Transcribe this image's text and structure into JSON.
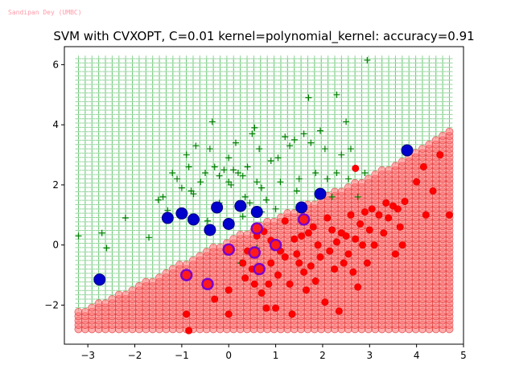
{
  "watermark": "Sandipan Dey (UMBC)",
  "chart_data": {
    "type": "scatter",
    "title": "SVM with CVXOPT, C=0.01 kernel=polynomial_kernel: accuracy=0.91",
    "xlabel": "",
    "ylabel": "",
    "xlim": [
      -3.5,
      5.0
    ],
    "ylim": [
      -3.3,
      6.6
    ],
    "xticks": [
      -3,
      -2,
      -1,
      0,
      1,
      2,
      3,
      4,
      5
    ],
    "yticks": [
      -2,
      0,
      2,
      4,
      6
    ],
    "grid": false,
    "legend": "none",
    "decision_region": {
      "grid_x_range": [
        -3.2,
        4.7
      ],
      "grid_y_range": [
        -2.8,
        6.2
      ],
      "boundary": [
        [
          -3.2,
          -2.2
        ],
        [
          -2.0,
          -1.4
        ],
        [
          -1.0,
          -0.6
        ],
        [
          0.0,
          0.2
        ],
        [
          1.0,
          0.9
        ],
        [
          2.0,
          1.6
        ],
        [
          3.0,
          2.3
        ],
        [
          4.0,
          3.1
        ],
        [
          4.7,
          3.9
        ]
      ],
      "positive_region_color": "#3cb44b",
      "negative_region_color": "#ff6b6b"
    },
    "series": [
      {
        "color": "#008000",
        "marker": "plus",
        "points": [
          [
            -3.2,
            0.3
          ],
          [
            -2.7,
            0.4
          ],
          [
            -2.6,
            -0.1
          ],
          [
            -2.2,
            0.9
          ],
          [
            -1.7,
            0.25
          ],
          [
            -1.5,
            1.5
          ],
          [
            -1.4,
            1.6
          ],
          [
            -1.2,
            2.4
          ],
          [
            -1.1,
            2.2
          ],
          [
            -1.0,
            1.9
          ],
          [
            -0.9,
            3.0
          ],
          [
            -0.85,
            2.6
          ],
          [
            -0.8,
            1.8
          ],
          [
            -0.75,
            1.7
          ],
          [
            -0.7,
            3.3
          ],
          [
            -0.6,
            2.1
          ],
          [
            -0.5,
            2.4
          ],
          [
            -0.4,
            3.2
          ],
          [
            -0.35,
            4.1
          ],
          [
            -0.3,
            2.6
          ],
          [
            -0.2,
            2.3
          ],
          [
            -0.1,
            2.5
          ],
          [
            0.0,
            2.9
          ],
          [
            0.0,
            2.1
          ],
          [
            0.05,
            2.0
          ],
          [
            0.1,
            2.5
          ],
          [
            0.15,
            3.4
          ],
          [
            0.2,
            2.4
          ],
          [
            0.3,
            2.3
          ],
          [
            0.35,
            1.6
          ],
          [
            0.4,
            2.6
          ],
          [
            0.45,
            1.4
          ],
          [
            0.5,
            3.7
          ],
          [
            0.55,
            3.9
          ],
          [
            0.6,
            2.1
          ],
          [
            0.65,
            3.2
          ],
          [
            0.7,
            1.9
          ],
          [
            0.8,
            1.5
          ],
          [
            0.9,
            2.8
          ],
          [
            1.05,
            2.9
          ],
          [
            1.1,
            2.1
          ],
          [
            1.2,
            3.6
          ],
          [
            1.3,
            3.3
          ],
          [
            1.4,
            3.5
          ],
          [
            1.5,
            2.2
          ],
          [
            1.6,
            3.7
          ],
          [
            1.7,
            4.9
          ],
          [
            1.75,
            3.4
          ],
          [
            1.85,
            2.4
          ],
          [
            1.95,
            3.8
          ],
          [
            2.1,
            2.2
          ],
          [
            2.2,
            1.6
          ],
          [
            2.3,
            2.4
          ],
          [
            2.4,
            3.0
          ],
          [
            2.5,
            4.1
          ],
          [
            2.55,
            2.2
          ],
          [
            2.6,
            3.2
          ],
          [
            2.75,
            1.6
          ],
          [
            2.9,
            2.4
          ],
          [
            2.95,
            6.15
          ],
          [
            2.3,
            5.0
          ],
          [
            2.05,
            3.2
          ],
          [
            1.45,
            1.8
          ],
          [
            1.0,
            1.2
          ],
          [
            0.7,
            1.1
          ],
          [
            0.3,
            0.95
          ],
          [
            0.25,
            -0.6
          ],
          [
            0.6,
            -0.1
          ],
          [
            -0.2,
            1.4
          ],
          [
            -0.45,
            0.8
          ],
          [
            -1.3,
            1.15
          ]
        ]
      },
      {
        "color": "#ff0000",
        "marker": "circle",
        "points": [
          [
            -0.9,
            -2.3
          ],
          [
            -0.85,
            -2.85
          ],
          [
            -0.3,
            -1.8
          ],
          [
            0.0,
            -2.3
          ],
          [
            0.0,
            -1.5
          ],
          [
            0.3,
            -0.6
          ],
          [
            0.35,
            -1.1
          ],
          [
            0.4,
            -0.2
          ],
          [
            0.5,
            -0.8
          ],
          [
            0.55,
            -1.3
          ],
          [
            0.6,
            0.3
          ],
          [
            0.7,
            -1.6
          ],
          [
            0.8,
            -2.1
          ],
          [
            0.85,
            -1.3
          ],
          [
            0.9,
            -0.6
          ],
          [
            1.0,
            -2.1
          ],
          [
            1.05,
            -1.0
          ],
          [
            1.1,
            -0.2
          ],
          [
            1.2,
            -0.4
          ],
          [
            1.3,
            -1.3
          ],
          [
            1.35,
            -2.3
          ],
          [
            1.4,
            0.2
          ],
          [
            1.5,
            -0.6
          ],
          [
            1.55,
            0.3
          ],
          [
            1.6,
            -0.9
          ],
          [
            1.65,
            -1.5
          ],
          [
            1.7,
            0.4
          ],
          [
            1.75,
            -0.7
          ],
          [
            1.8,
            0.6
          ],
          [
            1.85,
            -1.2
          ],
          [
            1.9,
            0.0
          ],
          [
            1.95,
            -0.4
          ],
          [
            2.05,
            -1.9
          ],
          [
            2.1,
            0.9
          ],
          [
            2.15,
            -0.2
          ],
          [
            2.2,
            0.5
          ],
          [
            2.25,
            -0.8
          ],
          [
            2.3,
            0.1
          ],
          [
            2.35,
            -2.2
          ],
          [
            2.4,
            0.4
          ],
          [
            2.45,
            -0.6
          ],
          [
            2.5,
            0.3
          ],
          [
            2.55,
            -0.3
          ],
          [
            2.6,
            1.0
          ],
          [
            2.65,
            -0.9
          ],
          [
            2.7,
            0.2
          ],
          [
            2.75,
            -1.4
          ],
          [
            2.8,
            0.7
          ],
          [
            2.85,
            0.0
          ],
          [
            2.9,
            1.1
          ],
          [
            2.95,
            -0.6
          ],
          [
            3.0,
            0.5
          ],
          [
            3.05,
            1.2
          ],
          [
            3.1,
            0.0
          ],
          [
            3.2,
            1.0
          ],
          [
            3.3,
            0.4
          ],
          [
            3.35,
            1.4
          ],
          [
            3.4,
            0.9
          ],
          [
            3.5,
            1.3
          ],
          [
            3.55,
            -0.3
          ],
          [
            3.6,
            1.2
          ],
          [
            3.65,
            0.6
          ],
          [
            3.7,
            0.0
          ],
          [
            3.75,
            1.45
          ],
          [
            4.0,
            2.1
          ],
          [
            4.15,
            2.6
          ],
          [
            4.2,
            1.0
          ],
          [
            4.35,
            1.8
          ],
          [
            4.5,
            3.0
          ],
          [
            4.7,
            1.0
          ],
          [
            2.7,
            2.55
          ],
          [
            1.2,
            0.8
          ],
          [
            0.9,
            0.15
          ],
          [
            1.45,
            -0.3
          ],
          [
            0.75,
            0.45
          ]
        ]
      }
    ],
    "support_vectors": {
      "positive": [
        [
          -2.75,
          -1.15
        ],
        [
          -1.3,
          0.9
        ],
        [
          -1.0,
          1.05
        ],
        [
          -0.75,
          0.85
        ],
        [
          -0.4,
          0.5
        ],
        [
          -0.25,
          1.25
        ],
        [
          0.0,
          0.7
        ],
        [
          0.25,
          1.3
        ],
        [
          0.6,
          1.1
        ],
        [
          1.55,
          1.25
        ],
        [
          1.95,
          1.7
        ],
        [
          3.8,
          3.15
        ]
      ],
      "negative": [
        [
          -0.9,
          -1.0
        ],
        [
          -0.45,
          -1.3
        ],
        [
          0.0,
          -0.15
        ],
        [
          0.55,
          -0.25
        ],
        [
          0.6,
          0.55
        ],
        [
          0.65,
          -0.8
        ],
        [
          1.0,
          0.0
        ],
        [
          1.6,
          0.85
        ]
      ],
      "fill_color": "#0000cc",
      "edge_color": "#7b00cc"
    }
  }
}
